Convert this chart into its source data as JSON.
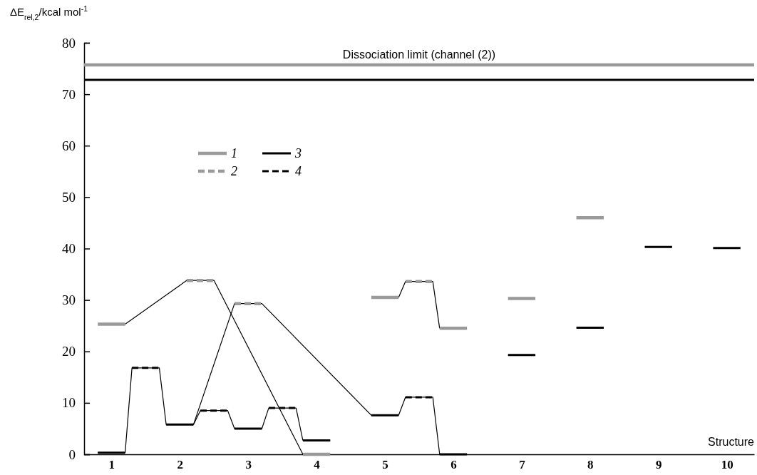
{
  "chart_data": {
    "type": "line",
    "ylabel": "ΔE$_{rel,2}$/kcal mol$^{-1}$",
    "xlabel": "Structure",
    "xlim": [
      0.6,
      10.4
    ],
    "xticks": [
      1,
      2,
      3,
      4,
      5,
      6,
      7,
      8,
      9,
      10
    ],
    "ylim": [
      0,
      80
    ],
    "yticks": [
      0,
      10,
      20,
      30,
      40,
      50,
      60,
      70,
      80
    ],
    "grid": false,
    "legend": "top left",
    "ref_lines": [
      {
        "axis": "y",
        "value": 75.7,
        "label": "Dissociation limit (channel (2))",
        "color": "#9a9a9a",
        "line_style": "solid"
      },
      {
        "axis": "y",
        "value": 72.8,
        "color": "#000000",
        "line_style": "solid"
      }
    ],
    "series": [
      {
        "color": "#000000",
        "line_style": "solid",
        "x": [
          1.2,
          2.1,
          2.5,
          3.8
        ],
        "values": [
          25.3,
          33.8,
          33.8,
          0
        ]
      },
      {
        "color": "#000000",
        "line_style": "solid",
        "x": [
          1.2,
          1.3,
          1.7,
          1.8,
          2.2,
          2.3,
          2.7,
          2.8,
          3.2,
          3.3,
          3.7,
          3.8
        ],
        "values": [
          0.3,
          16.8,
          16.8,
          5.8,
          5.8,
          8.5,
          8.5,
          5.0,
          5.0,
          9.0,
          9.0,
          2.7
        ]
      },
      {
        "color": "#000000",
        "line_style": "solid",
        "x": [
          2.2,
          2.8,
          3.2,
          4.8,
          5.2,
          5.3,
          5.7,
          5.8
        ],
        "values": [
          5.8,
          29.3,
          29.3,
          7.6,
          7.6,
          11.1,
          11.1,
          0
        ]
      },
      {
        "color": "#000000",
        "line_style": "solid",
        "x": [
          5.2,
          5.3,
          5.7,
          5.8
        ],
        "values": [
          30.5,
          33.6,
          33.6,
          24.5
        ]
      },
      {
        "name": "1",
        "color": "#9a9a9a",
        "line_style": "solid",
        "x": [
          0.8,
          1.2,
          2.5,
          3.8,
          4.2,
          4.5,
          4.8,
          5.2,
          5.5,
          5.8,
          6.2,
          6.5,
          6.8,
          7.2,
          7.5,
          7.8,
          8.2
        ],
        "values": [
          25.3,
          25.3,
          null,
          0,
          0,
          null,
          30.5,
          30.5,
          null,
          24.5,
          24.5,
          null,
          30.3,
          30.3,
          null,
          46.0,
          46.0
        ]
      },
      {
        "name": "2",
        "color": "#9a9a9a",
        "line_style": "dashed",
        "x": [
          2.1,
          2.5,
          2.65,
          2.8,
          3.2,
          4.25,
          5.3,
          5.7
        ],
        "values": [
          33.8,
          33.8,
          null,
          29.3,
          29.3,
          null,
          33.6,
          33.6
        ]
      },
      {
        "name": "3",
        "color": "#000000",
        "line_style": "solid",
        "x": [
          0.8,
          1.2,
          1.5,
          1.8,
          2.2,
          2.5,
          2.8,
          3.2,
          3.5,
          3.8,
          4.2,
          4.5,
          4.8,
          5.2,
          5.5,
          5.8,
          6.2,
          6.5,
          6.8,
          7.2,
          7.5,
          7.8,
          8.2,
          8.5,
          8.8,
          9.2,
          9.5,
          9.8,
          10.2
        ],
        "values": [
          0.3,
          0.3,
          null,
          5.8,
          5.8,
          null,
          5.0,
          5.0,
          null,
          2.7,
          2.7,
          null,
          7.6,
          7.6,
          null,
          0,
          0,
          null,
          19.3,
          19.3,
          null,
          24.6,
          24.6,
          null,
          40.3,
          40.3,
          null,
          40.1,
          40.1
        ]
      },
      {
        "name": "4",
        "color": "#000000",
        "line_style": "dashed",
        "x": [
          1.3,
          1.7,
          2.0,
          2.3,
          2.7,
          3.0,
          3.3,
          3.7,
          4.5,
          5.3,
          5.7
        ],
        "values": [
          16.8,
          16.8,
          null,
          8.5,
          8.5,
          null,
          9.0,
          9.0,
          null,
          11.1,
          11.1
        ]
      }
    ]
  }
}
